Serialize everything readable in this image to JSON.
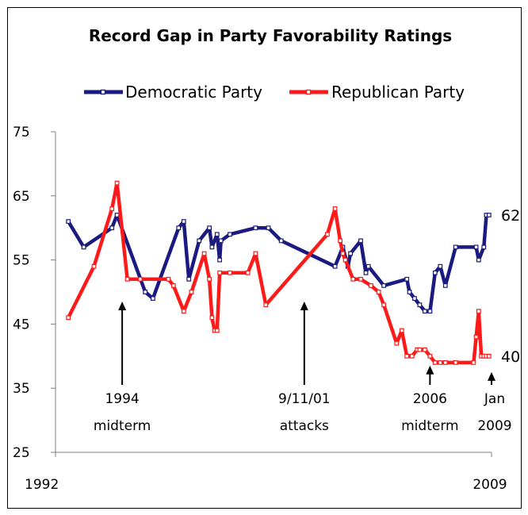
{
  "chart_data": {
    "type": "line",
    "title": "Record Gap in Party Favorability Ratings",
    "xlabel": "",
    "ylabel": "",
    "ylim": [
      25,
      75
    ],
    "xlim": [
      1992,
      2009
    ],
    "y_ticks": [
      "75",
      "65",
      "55",
      "45",
      "35",
      "25"
    ],
    "x_tick_labels": [
      "1992",
      "2009"
    ],
    "legend_position": "top",
    "grid": false,
    "series": [
      {
        "name": "Democratic Party",
        "color": "#1a1a80",
        "x": [
          1992.5,
          1993.1,
          1994.2,
          1994.4,
          1995.5,
          1995.8,
          1996.8,
          1997.0,
          1997.2,
          1997.6,
          1998.0,
          1998.1,
          1998.3,
          1998.4,
          1998.45,
          1998.8,
          1999.8,
          2000.3,
          2000.8,
          2002.9,
          2003.2,
          2003.4,
          2003.5,
          2003.9,
          2004.1,
          2004.2,
          2004.8,
          2005.7,
          2005.8,
          2006.0,
          2006.2,
          2006.4,
          2006.6,
          2006.8,
          2007.0,
          2007.2,
          2007.6,
          2008.4,
          2008.5,
          2008.7,
          2008.8,
          2008.9
        ],
        "values": [
          61,
          57,
          60,
          62,
          50,
          49,
          60,
          61,
          52,
          58,
          60,
          57,
          59,
          55,
          58,
          59,
          60,
          60,
          58,
          54,
          57,
          54,
          56,
          58,
          53,
          54,
          51,
          52,
          50,
          49,
          48,
          47,
          47,
          53,
          54,
          51,
          57,
          57,
          55,
          57,
          62,
          62
        ]
      },
      {
        "name": "Republican Party",
        "color": "#ff1a1a",
        "x": [
          1992.5,
          1993.5,
          1994.2,
          1994.4,
          1994.8,
          1995.3,
          1996.4,
          1996.6,
          1997.0,
          1997.3,
          1997.8,
          1998.0,
          1998.1,
          1998.2,
          1998.3,
          1998.4,
          1998.8,
          1999.5,
          1999.8,
          2000.2,
          2002.6,
          2002.9,
          2003.1,
          2003.2,
          2003.3,
          2003.6,
          2003.9,
          2004.3,
          2004.6,
          2004.8,
          2005.3,
          2005.5,
          2005.7,
          2005.9,
          2006.1,
          2006.2,
          2006.4,
          2006.6,
          2006.8,
          2007.0,
          2007.2,
          2007.6,
          2008.3,
          2008.4,
          2008.5,
          2008.6,
          2008.7,
          2008.8,
          2008.9
        ],
        "values": [
          46,
          54,
          63,
          67,
          52,
          52,
          52,
          51,
          47,
          50,
          56,
          52,
          46,
          44,
          44,
          53,
          53,
          53,
          56,
          48,
          59,
          63,
          58,
          56,
          55,
          52,
          52,
          51,
          50,
          48,
          42,
          44,
          40,
          40,
          41,
          41,
          41,
          40,
          39,
          39,
          39,
          39,
          39,
          43,
          47,
          40,
          40,
          40,
          40
        ]
      }
    ],
    "end_labels": [
      "62",
      "40"
    ],
    "annotations": [
      {
        "line1": "1994",
        "line2": "midterm",
        "x": 1994.6,
        "y_tip": 50
      },
      {
        "line1": "9/11/01",
        "line2": "attacks",
        "x": 2001.7,
        "y_tip": 50
      },
      {
        "line1": "2006",
        "line2": "midterm",
        "x": 2006.6,
        "y_tip": 40
      },
      {
        "line1": "Jan",
        "line2": "2009",
        "x": 2009.0,
        "y_tip": 39
      }
    ]
  }
}
